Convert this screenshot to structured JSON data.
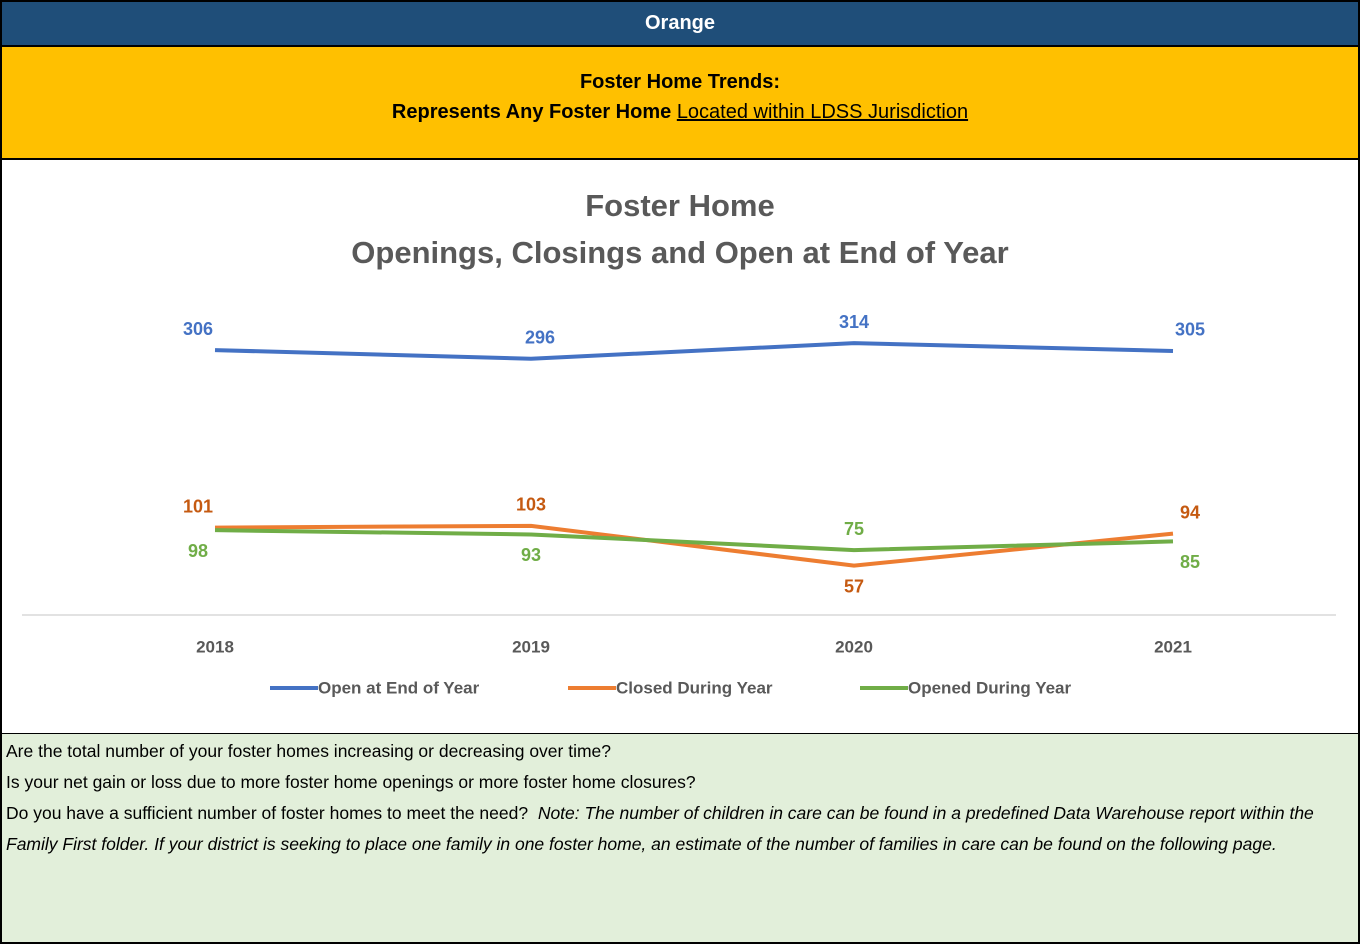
{
  "header": {
    "county": "Orange",
    "title": "Foster Home Trends:",
    "subtitle_bold": "Represents Any Foster Home",
    "subtitle_underlined": "Located within LDSS Jurisdiction"
  },
  "chart_data": {
    "type": "line",
    "title": [
      "Foster Home",
      "Openings, Closings and Open at End of Year"
    ],
    "categories": [
      "2018",
      "2019",
      "2020",
      "2021"
    ],
    "series": [
      {
        "name": "Open at End of Year",
        "color": "#4472c4",
        "label_color": "#4472c4",
        "values": [
          306,
          296,
          314,
          305
        ]
      },
      {
        "name": "Closed During Year",
        "color": "#ed7d31",
        "label_color": "#c55a11",
        "values": [
          101,
          103,
          57,
          94
        ]
      },
      {
        "name": "Opened During Year",
        "color": "#70ad47",
        "label_color": "#70ad47",
        "values": [
          98,
          93,
          75,
          85
        ]
      }
    ],
    "ylim": [
      0,
      350
    ],
    "legend": "bottom"
  },
  "notes": {
    "q1": "Are the total number of your foster homes increasing or decreasing over time?",
    "q2": "Is your net gain or loss due to more foster home openings or more foster home closures?",
    "q3": "Do you have a sufficient number of foster homes to meet the need?",
    "note": "Note:  The number of children in care can be found in a predefined Data Warehouse report within the Family First folder.  If your district is seeking to place one family in one foster home, an estimate of the number of families in care can be found on the following page."
  }
}
